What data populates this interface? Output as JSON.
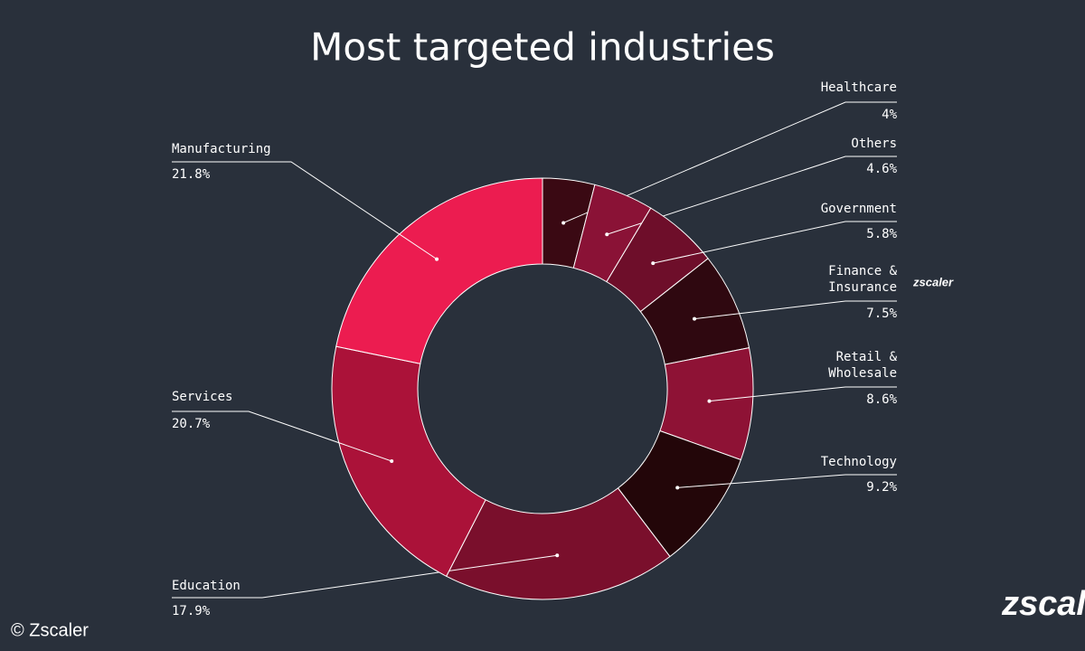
{
  "chart_data": {
    "type": "donut",
    "title": "Most targeted industries",
    "categories": [
      "Healthcare",
      "Others",
      "Government",
      "Finance & Insurance",
      "Retail & Wholesale",
      "Technology",
      "Education",
      "Services",
      "Manufacturing"
    ],
    "values": [
      4,
      4.6,
      5.8,
      7.5,
      8.6,
      9.2,
      17.9,
      20.7,
      21.8
    ],
    "value_labels": [
      "4%",
      "4.6%",
      "5.8%",
      "7.5%",
      "8.6%",
      "9.2%",
      "17.9%",
      "20.7%",
      "21.8%"
    ],
    "colors": [
      "#3a0913",
      "#8a1236",
      "#6e0e2a",
      "#2f0810",
      "#8e1235",
      "#230609",
      "#7a0f2c",
      "#ab1239",
      "#ec1c50"
    ],
    "source": "© Zscaler",
    "logo": "zscaler"
  }
}
